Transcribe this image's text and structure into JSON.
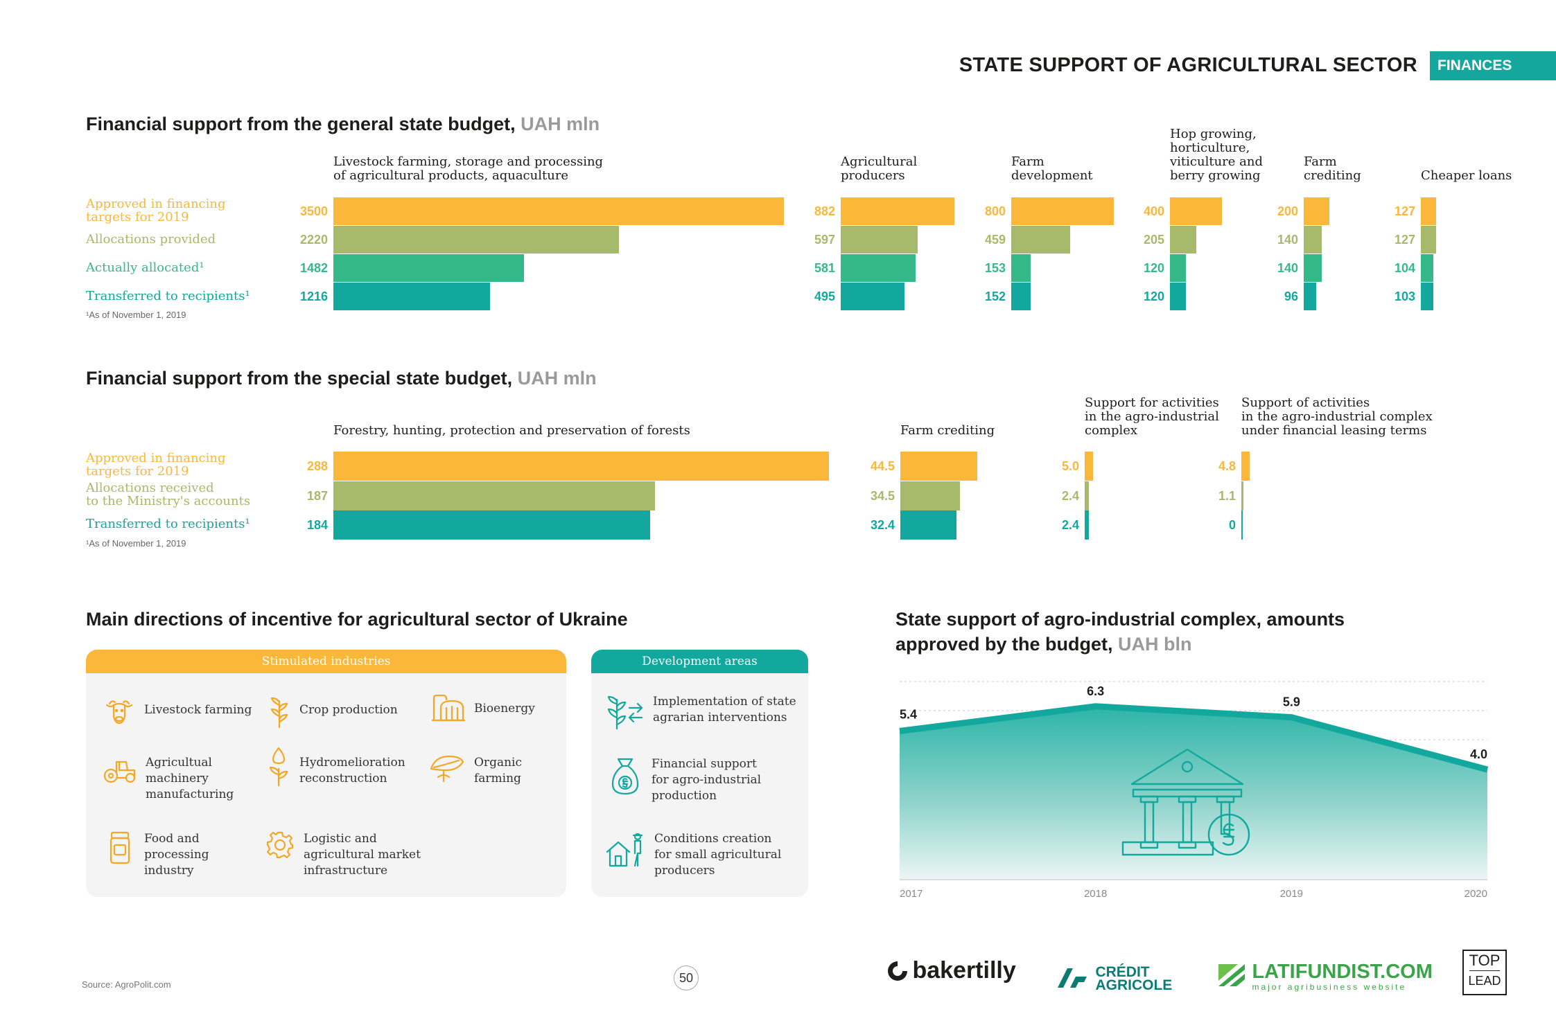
{
  "header": {
    "title": "STATE SUPPORT OF AGRICULTURAL SECTOR",
    "badge": "FINANCES"
  },
  "general": {
    "title": "Financial support from the general state budget,",
    "unit": "UAH mln",
    "rows": [
      "Approved in financing\ntargets for 2019",
      "Allocations provided",
      "Actually allocated¹",
      "Transferred to recipients¹"
    ],
    "footnote": "¹As of November 1, 2019"
  },
  "special": {
    "title": "Financial support from the special state budget,",
    "unit": "UAH mln",
    "rows": [
      "Approved in financing\ntargets for 2019",
      "Allocations received\nto the Ministry's accounts",
      "Transferred to recipients¹"
    ],
    "footnote": "¹As of November 1, 2019"
  },
  "directions": {
    "title": "Main directions of incentive for agricultural sector of Ukraine",
    "stimulated_header": "Stimulated industries",
    "development_header": "Development areas",
    "stimulated": [
      {
        "label": "Livestock farming",
        "icon": "cow-icon"
      },
      {
        "label": "Crop production",
        "icon": "sprout-icon"
      },
      {
        "label": "Bioenergy",
        "icon": "bioenergy-icon"
      },
      {
        "label": "Agricultual\nmachinery\nmanufacturing",
        "icon": "tractor-icon"
      },
      {
        "label": "Hydromelioration\nreconstruction",
        "icon": "water-drop-icon"
      },
      {
        "label": "Organic\nfarming",
        "icon": "organic-leaf-icon"
      },
      {
        "label": "Food and\nprocessing\nindustry",
        "icon": "jar-icon"
      },
      {
        "label": "Logistic and\nagricultural market\ninfrastructure",
        "icon": "gear-icon"
      }
    ],
    "development": [
      {
        "label": "Implementation of state\nagrarian interventions",
        "icon": "plant-arrows-icon"
      },
      {
        "label": "Financial support\nfor agro-industrial\nproduction",
        "icon": "money-bag-icon"
      },
      {
        "label": "Conditions creation\nfor small agricultural\nproducers",
        "icon": "farmer-house-icon"
      }
    ]
  },
  "area_title": {
    "line1": "State support of agro-industrial complex, amounts",
    "line2": "approved by the budget,",
    "unit": "UAH bln"
  },
  "colors": {
    "yellow": "#fbb73a",
    "olive": "#a7b96a",
    "green": "#35b98b",
    "teal": "#12a89d"
  },
  "chart_data": [
    {
      "type": "bar",
      "title": "Financial support from the general state budget, UAH mln",
      "categories": [
        "Livestock farming, storage and processing\nof agricultural products, aquaculture",
        "Agricultural\nproducers",
        "Farm\ndevelopment",
        "Hop growing,\nhorticulture,\nviticulture and\nberry growing",
        "Farm\ncrediting",
        "Cheaper loans"
      ],
      "series": [
        {
          "name": "Approved in financing targets for 2019",
          "values": [
            3500,
            882,
            800,
            400,
            200,
            127
          ]
        },
        {
          "name": "Allocations provided",
          "values": [
            2220,
            597,
            459,
            205,
            140,
            127
          ]
        },
        {
          "name": "Actually allocated¹",
          "values": [
            1482,
            581,
            153,
            120,
            140,
            104
          ]
        },
        {
          "name": "Transferred to recipients¹",
          "values": [
            1216,
            495,
            152,
            120,
            96,
            103
          ]
        }
      ]
    },
    {
      "type": "bar",
      "title": "Financial support from the special state budget, UAH mln",
      "categories": [
        "Forestry, hunting, protection and preservation of forests",
        "Farm crediting",
        "Support for activities\nin the agro-industrial\ncomplex",
        "Support of activities\nin the agro-industrial complex\nunder financial leasing terms"
      ],
      "series": [
        {
          "name": "Approved in financing targets for 2019",
          "values": [
            "288",
            "44.5",
            "5.0",
            "4.8"
          ]
        },
        {
          "name": "Allocations received to the Ministry's accounts",
          "values": [
            "187",
            "34.5",
            "2.4",
            "1.1"
          ]
        },
        {
          "name": "Transferred to recipients¹",
          "values": [
            "184",
            "32.4",
            "2.4",
            "0"
          ]
        }
      ]
    },
    {
      "type": "area",
      "title": "State support of agro-industrial complex, amounts approved by the budget, UAH bln",
      "x": [
        "2017",
        "2018",
        "2019",
        "2020"
      ],
      "values": [
        "5.4",
        "6.3",
        "5.9",
        "4.0"
      ],
      "ylim": [
        0,
        7.2
      ]
    }
  ],
  "footer": {
    "source": "Source: AgroPolit.com",
    "page": "50",
    "logos": {
      "bakertilly": "bakertilly",
      "credit1": "CRÉDIT",
      "credit2": "AGRICOLE",
      "latifundist": "LATIFUNDIST.COM",
      "latifundist_sub": "major agribusiness website",
      "toplead1": "TOP",
      "toplead2": "LEAD"
    }
  }
}
